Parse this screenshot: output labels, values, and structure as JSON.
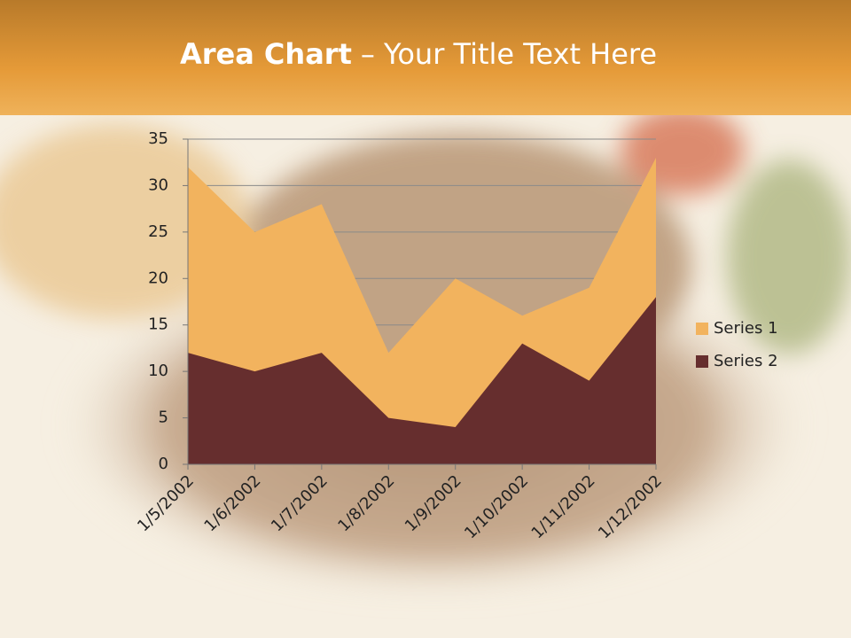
{
  "chart_data": {
    "type": "area",
    "title": {
      "bold": "Area Chart",
      "rest": "– Your Title Text Here"
    },
    "categories": [
      "1/5/2002",
      "1/6/2002",
      "1/7/2002",
      "1/8/2002",
      "1/9/2002",
      "1/10/2002",
      "1/11/2002",
      "1/12/2002"
    ],
    "series": [
      {
        "name": "Series 1",
        "color": "#f2b35e",
        "values": [
          32,
          25,
          28,
          12,
          20,
          16,
          19,
          33
        ]
      },
      {
        "name": "Series 2",
        "color": "#662e2e",
        "values": [
          12,
          10,
          12,
          5,
          4,
          13,
          9,
          18
        ]
      }
    ],
    "ylim": [
      0,
      35
    ],
    "yticks": [
      0,
      5,
      10,
      15,
      20,
      25,
      30,
      35
    ],
    "grid": true,
    "legend": "right"
  }
}
